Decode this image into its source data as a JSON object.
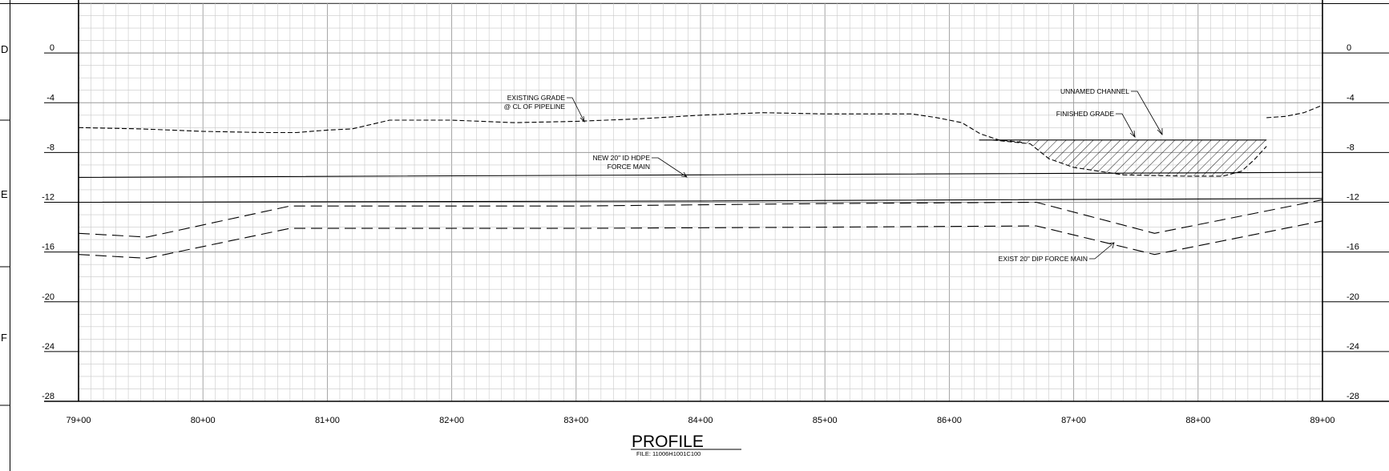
{
  "drawing": {
    "title": "PROFILE",
    "file_label": "FILE: 11006H1001C100",
    "zone_letters": [
      "D",
      "E",
      "F"
    ]
  },
  "chart_data": {
    "type": "line",
    "x_ticks": [
      "79+00",
      "80+00",
      "81+00",
      "82+00",
      "83+00",
      "84+00",
      "85+00",
      "86+00",
      "87+00",
      "88+00",
      "89+00"
    ],
    "y_ticks": [
      "0",
      "-4",
      "-8",
      "-12",
      "-16",
      "-20",
      "-24",
      "-28"
    ],
    "xlim": [
      7900,
      8900
    ],
    "ylim": [
      -28,
      4
    ],
    "grid": true,
    "series": [
      {
        "key": "existing_grade",
        "style": "short-dash",
        "points": [
          [
            7900,
            -6.0
          ],
          [
            7950,
            -6.1
          ],
          [
            8000,
            -6.3
          ],
          [
            8050,
            -6.4
          ],
          [
            8075,
            -6.4
          ],
          [
            8100,
            -6.2
          ],
          [
            8120,
            -6.1
          ],
          [
            8150,
            -5.4
          ],
          [
            8200,
            -5.4
          ],
          [
            8250,
            -5.6
          ],
          [
            8300,
            -5.5
          ],
          [
            8350,
            -5.3
          ],
          [
            8400,
            -5.0
          ],
          [
            8450,
            -4.8
          ],
          [
            8500,
            -4.9
          ],
          [
            8550,
            -4.9
          ],
          [
            8570,
            -4.9
          ],
          [
            8590,
            -5.2
          ],
          [
            8610,
            -5.6
          ],
          [
            8625,
            -6.5
          ],
          [
            8640,
            -7.0
          ],
          [
            8660,
            -7.2
          ]
        ]
      },
      {
        "key": "existing_grade_right",
        "style": "short-dash",
        "points": [
          [
            8855,
            -5.2
          ],
          [
            8870,
            -5.1
          ],
          [
            8885,
            -4.8
          ],
          [
            8900,
            -4.2
          ]
        ]
      },
      {
        "key": "new_force_main_top",
        "style": "solid",
        "points": [
          [
            7900,
            -10.0
          ],
          [
            8400,
            -9.8
          ],
          [
            8900,
            -9.6
          ]
        ]
      },
      {
        "key": "new_force_main_bottom",
        "style": "solid",
        "points": [
          [
            7900,
            -12.0
          ],
          [
            8400,
            -11.9
          ],
          [
            8900,
            -11.7
          ]
        ]
      },
      {
        "key": "exist_dip_top",
        "style": "long-dash",
        "points": [
          [
            7900,
            -14.5
          ],
          [
            7955,
            -14.8
          ],
          [
            8070,
            -12.3
          ],
          [
            8300,
            -12.3
          ],
          [
            8500,
            -12.1
          ],
          [
            8670,
            -12.0
          ],
          [
            8765,
            -14.5
          ],
          [
            8900,
            -11.8
          ]
        ]
      },
      {
        "key": "exist_dip_bottom",
        "style": "long-dash",
        "points": [
          [
            7900,
            -16.2
          ],
          [
            7955,
            -16.5
          ],
          [
            8070,
            -14.1
          ],
          [
            8300,
            -14.1
          ],
          [
            8500,
            -14.0
          ],
          [
            8670,
            -13.9
          ],
          [
            8765,
            -16.2
          ],
          [
            8900,
            -13.5
          ]
        ]
      },
      {
        "key": "finished_grade",
        "style": "solid",
        "points": [
          [
            8624,
            -7.0
          ],
          [
            8855,
            -7.0
          ]
        ]
      },
      {
        "key": "channel_bottom",
        "style": "short-dash",
        "points": [
          [
            8635,
            -7.0
          ],
          [
            8665,
            -7.3
          ],
          [
            8680,
            -8.5
          ],
          [
            8700,
            -9.2
          ],
          [
            8740,
            -9.8
          ],
          [
            8790,
            -9.9
          ],
          [
            8820,
            -9.9
          ],
          [
            8835,
            -9.5
          ],
          [
            8845,
            -8.6
          ],
          [
            8855,
            -7.5
          ]
        ]
      }
    ],
    "annotations": [
      {
        "key": "existing_grade",
        "lines": [
          "EXISTING GRADE",
          "@ CL OF PIPELINE"
        ]
      },
      {
        "key": "new_force_main",
        "lines": [
          "NEW 20\" ID HDPE",
          "FORCE MAIN"
        ]
      },
      {
        "key": "unnamed_channel",
        "lines": [
          "UNNAMED CHANNEL"
        ]
      },
      {
        "key": "finished_grade",
        "lines": [
          "FINISHED GRADE"
        ]
      },
      {
        "key": "exist_dip",
        "lines": [
          "EXIST 20\" DIP FORCE MAIN"
        ]
      }
    ]
  }
}
